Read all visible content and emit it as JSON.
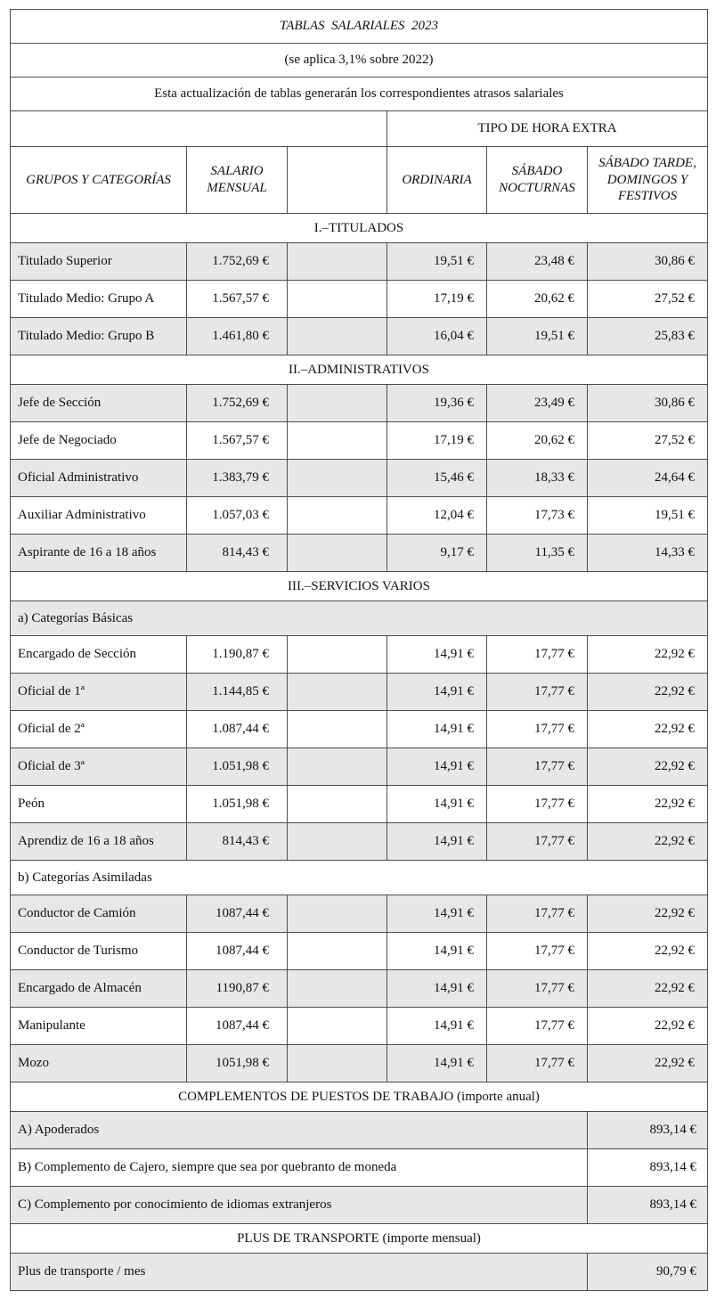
{
  "colors": {
    "row_shade": "#e6e7e8",
    "border": "#4d4d4d",
    "text": "#111111"
  },
  "header": {
    "title": "TABLAS  SALARIALES  2023",
    "subtitle": "(se aplica 3,1% sobre 2022)",
    "note": "Esta actualización de tablas generarán los correspondientes atrasos salariales",
    "extra_hours_header": "TIPO DE HORA EXTRA",
    "columns": [
      "GRUPOS Y CATEGORÍAS",
      "SALARIO MENSUAL",
      "",
      "ORDINARIA",
      "SÁBADO NOCTURNAS",
      "SÁBADO TARDE, DOMINGOS Y FESTIVOS"
    ]
  },
  "table": {
    "rows": [
      {
        "kind": "section",
        "label": "I.–TITULADOS",
        "shade": false
      },
      {
        "kind": "data",
        "shade": true,
        "cells": [
          "Titulado Superior",
          "1.752,69 €",
          "19,51 €",
          "23,48 €",
          "30,86 €"
        ]
      },
      {
        "kind": "data",
        "shade": false,
        "cells": [
          "Titulado Medio: Grupo A",
          "1.567,57 €",
          "17,19 €",
          "20,62 €",
          "27,52 €"
        ]
      },
      {
        "kind": "data",
        "shade": true,
        "cells": [
          "Titulado Medio: Grupo B",
          "1.461,80 €",
          "16,04 €",
          "19,51 €",
          "25,83 €"
        ]
      },
      {
        "kind": "section",
        "label": "II.–ADMINISTRATIVOS",
        "shade": false
      },
      {
        "kind": "data",
        "shade": true,
        "cells": [
          "Jefe de Sección",
          "1.752,69 €",
          "19,36 €",
          "23,49 €",
          "30,86 €"
        ]
      },
      {
        "kind": "data",
        "shade": false,
        "cells": [
          "Jefe de Negociado",
          "1.567,57 €",
          "17,19 €",
          "20,62 €",
          "27,52 €"
        ]
      },
      {
        "kind": "data",
        "shade": true,
        "cells": [
          "Oficial Administrativo",
          "1.383,79 €",
          "15,46 €",
          "18,33 €",
          "24,64 €"
        ]
      },
      {
        "kind": "data",
        "shade": false,
        "cells": [
          "Auxiliar Administrativo",
          "1.057,03 €",
          "12,04 €",
          "17,73 €",
          "19,51 €"
        ]
      },
      {
        "kind": "data",
        "shade": true,
        "cells": [
          "Aspirante de 16 a 18 años",
          "814,43 €",
          "9,17 €",
          "11,35 €",
          "14,33 €"
        ]
      },
      {
        "kind": "section",
        "label": "III.–SERVICIOS VARIOS",
        "shade": false
      },
      {
        "kind": "subsection",
        "label": "a) Categorías Básicas",
        "shade": true
      },
      {
        "kind": "data",
        "shade": false,
        "cells": [
          "Encargado de Sección",
          "1.190,87 €",
          "14,91 €",
          "17,77 €",
          "22,92 €"
        ]
      },
      {
        "kind": "data",
        "shade": true,
        "cells": [
          "Oficial de 1ª",
          "1.144,85 €",
          "14,91 €",
          "17,77 €",
          "22,92 €"
        ]
      },
      {
        "kind": "data",
        "shade": false,
        "cells": [
          "Oficial de 2ª",
          "1.087,44 €",
          "14,91 €",
          "17,77 €",
          "22,92 €"
        ]
      },
      {
        "kind": "data",
        "shade": true,
        "cells": [
          "Oficial de 3ª",
          "1.051,98 €",
          "14,91 €",
          "17,77 €",
          "22,92 €"
        ]
      },
      {
        "kind": "data",
        "shade": false,
        "cells": [
          "Peón",
          "1.051,98 €",
          "14,91 €",
          "17,77 €",
          "22,92 €"
        ]
      },
      {
        "kind": "data",
        "shade": true,
        "cells": [
          "Aprendiz de 16 a 18 años",
          "814,43 €",
          "14,91 €",
          "17,77 €",
          "22,92 €"
        ]
      },
      {
        "kind": "subsection",
        "label": "b) Categorías Asimiladas",
        "shade": false
      },
      {
        "kind": "data",
        "shade": true,
        "cells": [
          "Conductor de Camión",
          "1087,44 €",
          "14,91 €",
          "17,77 €",
          "22,92 €"
        ]
      },
      {
        "kind": "data",
        "shade": false,
        "cells": [
          "Conductor de Turismo",
          "1087,44 €",
          "14,91 €",
          "17,77 €",
          "22,92 €"
        ]
      },
      {
        "kind": "data",
        "shade": true,
        "cells": [
          "Encargado de Almacén",
          "1190,87 €",
          "14,91 €",
          "17,77 €",
          "22,92 €"
        ]
      },
      {
        "kind": "data",
        "shade": false,
        "cells": [
          "Manipulante",
          "1087,44 €",
          "14,91 €",
          "17,77 €",
          "22,92 €"
        ]
      },
      {
        "kind": "data",
        "shade": true,
        "cells": [
          "Mozo",
          "1051,98 €",
          "14,91 €",
          "17,77 €",
          "22,92 €"
        ]
      },
      {
        "kind": "section",
        "label": "COMPLEMENTOS DE PUESTOS DE TRABAJO (importe anual)",
        "shade": false
      },
      {
        "kind": "amount",
        "shade": true,
        "label": "A) Apoderados",
        "value": "893,14 €"
      },
      {
        "kind": "amount",
        "shade": false,
        "label": "B) Complemento de Cajero, siempre que sea por quebranto de moneda",
        "value": "893,14 €"
      },
      {
        "kind": "amount",
        "shade": true,
        "label": "C) Complemento por conocimiento de idiomas extranjeros",
        "value": "893,14 €"
      },
      {
        "kind": "section",
        "label": "PLUS DE TRANSPORTE (importe mensual)",
        "shade": false
      },
      {
        "kind": "amount",
        "shade": true,
        "label": "Plus de transporte / mes",
        "value": "90,79 €"
      }
    ]
  }
}
